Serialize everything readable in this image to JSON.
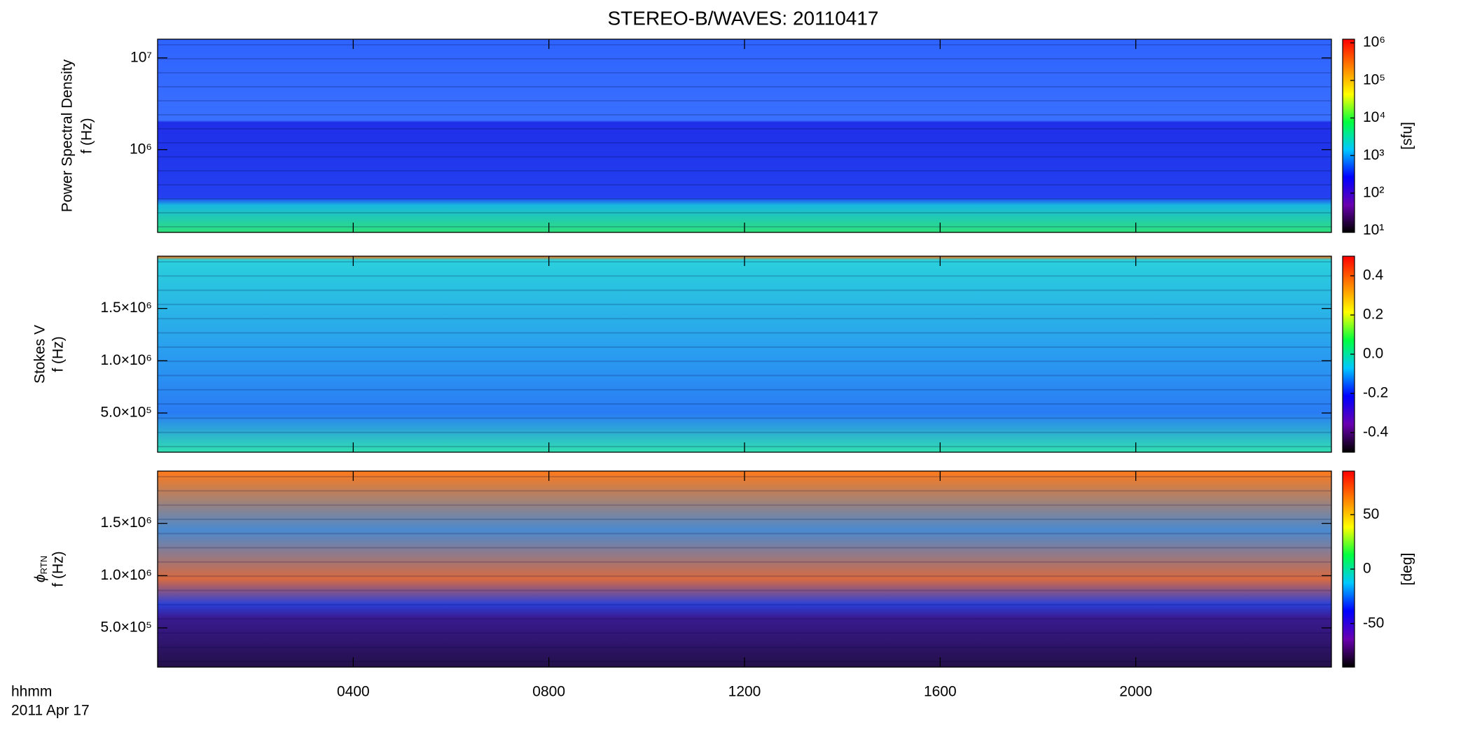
{
  "chart_data": [
    {
      "type": "heatmap",
      "title": "STEREO-B/WAVES: 20110417",
      "ylabel": [
        "Power Spectral Density",
        "f (Hz)"
      ],
      "ylog": true,
      "ylim": [
        125000,
        16000000
      ],
      "yticks": [
        {
          "value": 1000000,
          "label": "10⁶"
        },
        {
          "value": 10000000,
          "label": "10⁷"
        }
      ],
      "colorbar": {
        "label": "[sfu]",
        "log": true,
        "lim": [
          9,
          1250000
        ],
        "ticks": [
          {
            "value": 10,
            "label": "10¹"
          },
          {
            "value": 100,
            "label": "10²"
          },
          {
            "value": 1000,
            "label": "10³"
          },
          {
            "value": 10000,
            "label": "10⁴"
          },
          {
            "value": 100000,
            "label": "10⁵"
          },
          {
            "value": 1000000,
            "label": "10⁶"
          }
        ],
        "colors": [
          "#000000",
          "#6a00b0",
          "#0000ff",
          "#00c8ff",
          "#00ff40",
          "#ffff00",
          "#ff8000",
          "#ff0000"
        ]
      }
    },
    {
      "type": "heatmap",
      "ylabel": [
        "Stokes V",
        "f (Hz)"
      ],
      "ylim": [
        125000,
        2000000
      ],
      "yticks": [
        {
          "value": 500000,
          "label": "5.0×10⁵"
        },
        {
          "value": 1000000,
          "label": "1.0×10⁶"
        },
        {
          "value": 1500000,
          "label": "1.5×10⁶"
        }
      ],
      "colorbar": {
        "lim": [
          -0.5,
          0.5
        ],
        "ticks": [
          -0.4,
          -0.2,
          {
            "value": 0,
            "label": "0.0"
          },
          0.2,
          0.4
        ],
        "colors": [
          "#000000",
          "#6a00b0",
          "#0000ff",
          "#00c8ff",
          "#00ff40",
          "#ffff00",
          "#ff8000",
          "#ff0000"
        ]
      }
    },
    {
      "type": "heatmap",
      "ylabel": [
        "ϕ",
        "f (Hz)"
      ],
      "ylabel_sub": "RTN",
      "ylim": [
        125000,
        2000000
      ],
      "yticks": [
        {
          "value": 500000,
          "label": "5.0×10⁵"
        },
        {
          "value": 1000000,
          "label": "1.0×10⁶"
        },
        {
          "value": 1500000,
          "label": "1.5×10⁶"
        }
      ],
      "colorbar": {
        "label": "[deg]",
        "lim": [
          -90,
          90
        ],
        "ticks": [
          -50,
          0,
          50
        ],
        "colors": [
          "#000000",
          "#6a00b0",
          "#0000ff",
          "#00c8ff",
          "#00ff40",
          "#ffff00",
          "#ff8000",
          "#ff0000"
        ]
      },
      "xlim": [
        0,
        24
      ],
      "xticks": [
        {
          "value": 4,
          "label": "0400"
        },
        {
          "value": 8,
          "label": "0800"
        },
        {
          "value": 12,
          "label": "1200"
        },
        {
          "value": 16,
          "label": "1600"
        },
        {
          "value": 20,
          "label": "2000"
        }
      ],
      "xlabel": [
        "hhmm",
        "2011 Apr 17"
      ]
    }
  ]
}
